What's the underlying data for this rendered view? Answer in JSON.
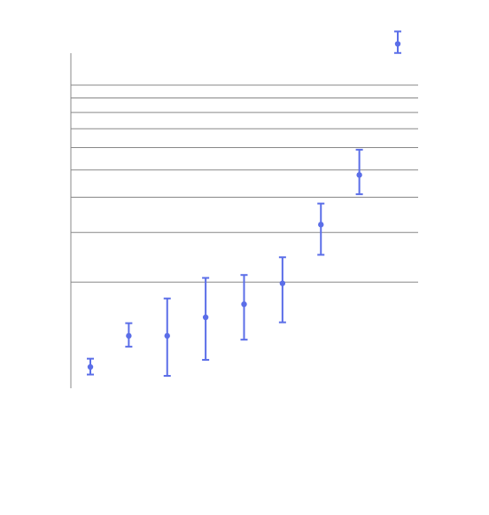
{
  "chart_data": {
    "type": "scatter",
    "title": "",
    "xlabel": "",
    "ylabel": "",
    "y_scale": "log",
    "grid": {
      "horizontal": true,
      "vertical": false
    },
    "legend": "none",
    "series_color": "#5b6ee8",
    "gridline_color": "#888888",
    "axis_color": "#888888",
    "x_range": [
      0.5,
      9.5
    ],
    "y_range": [
      0.8,
      100
    ],
    "gridlines": [
      2,
      3,
      4,
      5,
      6,
      7,
      8,
      9,
      10
    ],
    "points": [
      {
        "x": 1,
        "y": 1.0,
        "lower": 0.94,
        "upper": 1.07
      },
      {
        "x": 2,
        "y": 1.29,
        "lower": 1.18,
        "upper": 1.43
      },
      {
        "x": 3,
        "y": 1.29,
        "lower": 0.93,
        "upper": 1.75
      },
      {
        "x": 4,
        "y": 1.5,
        "lower": 1.06,
        "upper": 2.07
      },
      {
        "x": 5,
        "y": 1.67,
        "lower": 1.25,
        "upper": 2.12
      },
      {
        "x": 6,
        "y": 1.98,
        "lower": 1.44,
        "upper": 2.45
      },
      {
        "x": 7,
        "y": 3.2,
        "lower": 2.5,
        "upper": 3.8
      },
      {
        "x": 8,
        "y": 4.8,
        "lower": 4.1,
        "upper": 5.9
      },
      {
        "x": 9,
        "y": 14.0,
        "lower": 13.0,
        "upper": 15.5
      }
    ]
  }
}
